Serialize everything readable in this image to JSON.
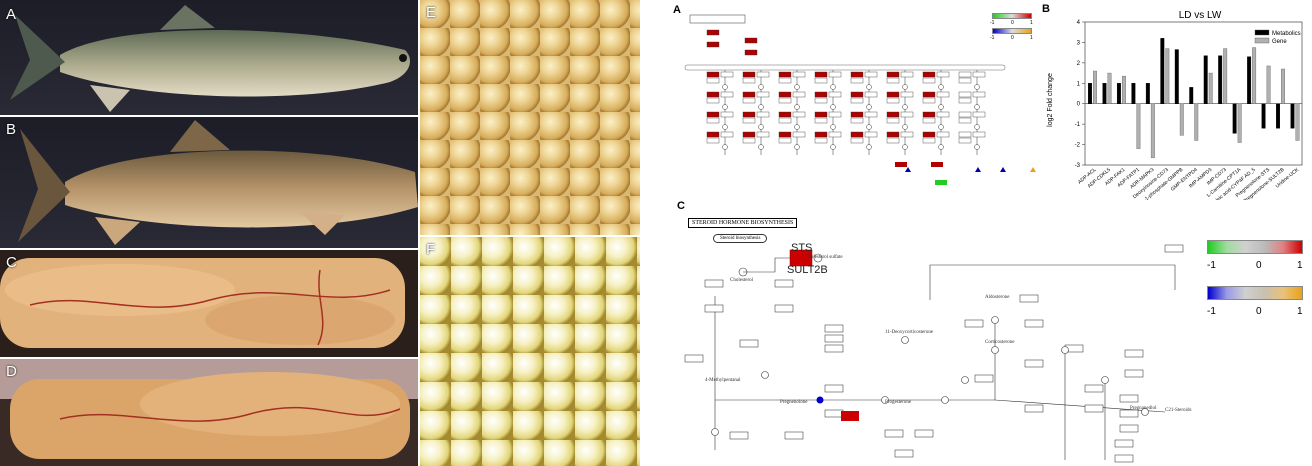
{
  "photos": {
    "A": {
      "label": "A"
    },
    "B": {
      "label": "B"
    },
    "C": {
      "label": "C"
    },
    "D": {
      "label": "D"
    },
    "E": {
      "label": "E"
    },
    "F": {
      "label": "F"
    }
  },
  "panel_a": {
    "label": "A",
    "legend1": {
      "min": "-1",
      "mid": "0",
      "max": "1"
    },
    "legend2": {
      "min": "-1",
      "mid": "0",
      "max": "1"
    }
  },
  "panel_c": {
    "label": "C",
    "title": "STEROID HORMONE BIOSYNTHESIS",
    "gene_sts": "STS",
    "gene_sult2b": "SULT2B",
    "nodes": [
      "Steroid biosynthesis",
      "Cholesterol sulfate",
      "Cholesterol",
      "Pregnenolone",
      "Progesterone",
      "Corticosterone",
      "C21-Steroids",
      "4-Methylpentanal",
      "11-Deoxycorticosterone",
      "Aldosterone",
      "Pregnanediol"
    ],
    "legend1": {
      "min": "-1",
      "mid": "0",
      "max": "1"
    },
    "legend2": {
      "min": "-1",
      "mid": "0",
      "max": "1"
    }
  },
  "colors": {
    "up": "#cc0000",
    "down_green": "#22cc22",
    "down_blue": "#0000cc",
    "up_orange": "#e8a21a",
    "metabolics": "#000000",
    "gene": "#b0b0b0"
  },
  "chart_data": {
    "type": "bar",
    "label": "B",
    "title": "LD vs LW",
    "xlabel": "",
    "ylabel": "log2 Fold change",
    "ylim": [
      -3,
      4
    ],
    "yticks": [
      "-3",
      "-2",
      "-1",
      "0",
      "1",
      "2",
      "3",
      "4"
    ],
    "legend": "top-right",
    "grid": false,
    "categories": [
      "ADP-ACL",
      "ADP-CDKL5",
      "ADP-FAK1",
      "ADP-FATP1",
      "ADR-MAPK3",
      "Deoxyinosine-CD73",
      "D-Mannose-1-phosphate-GMPPB",
      "GMP-ENTPD4",
      "IMP-AMPD3",
      "IMP-CD73",
      "L-Carnitine-CPT1A",
      "Linoleic acid-CYP4F AD_5",
      "Pregnenolone-STS",
      "Pregnenolone-SULT2B",
      "Uridine-UCK"
    ],
    "series": [
      {
        "name": "Metabolics",
        "values": [
          1.0,
          1.0,
          1.0,
          1.0,
          1.0,
          3.2,
          2.65,
          0.8,
          2.35,
          2.35,
          -1.45,
          2.3,
          -1.2,
          -1.2,
          -1.2
        ]
      },
      {
        "name": "Gene",
        "values": [
          1.6,
          1.5,
          1.35,
          -2.2,
          -2.65,
          2.7,
          -1.55,
          -1.8,
          1.5,
          2.7,
          -1.9,
          2.75,
          1.85,
          1.7,
          -1.8
        ]
      }
    ]
  }
}
